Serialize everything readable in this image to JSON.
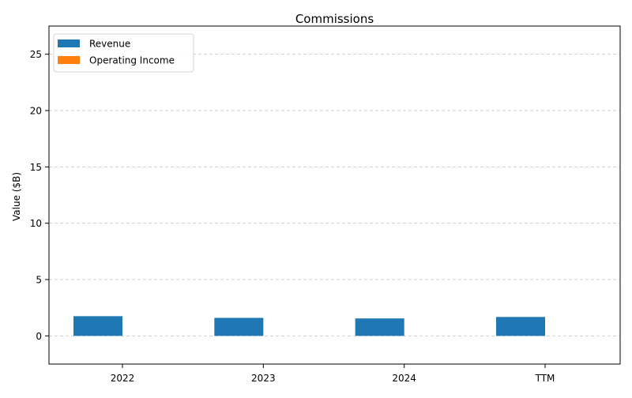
{
  "chart_data": {
    "type": "bar",
    "title": "Commissions",
    "xlabel": "",
    "ylabel": "Value ($B)",
    "categories": [
      "2022",
      "2023",
      "2024",
      "TTM"
    ],
    "series": [
      {
        "name": "Revenue",
        "color": "#1f77b4",
        "values": [
          1.75,
          1.6,
          1.55,
          1.68
        ]
      },
      {
        "name": "Operating Income",
        "color": "#ff7f0e",
        "values": [
          0,
          0,
          0,
          0
        ]
      }
    ],
    "ylim": [
      -2.5,
      27.5
    ],
    "yticks": [
      0,
      5,
      10,
      15,
      20,
      25
    ],
    "grid": "y-dashed",
    "legend_position": "top-left"
  }
}
